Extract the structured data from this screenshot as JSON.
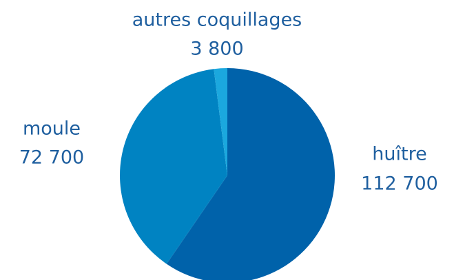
{
  "chart_data": {
    "type": "pie",
    "categories": [
      "huître",
      "moule",
      "autres coquillages"
    ],
    "values": [
      112700,
      72700,
      3800
    ],
    "value_labels": [
      "112 700",
      "72 700",
      "3 800"
    ],
    "colors": [
      "#0062aa",
      "#0083c2",
      "#1ba8de"
    ]
  }
}
